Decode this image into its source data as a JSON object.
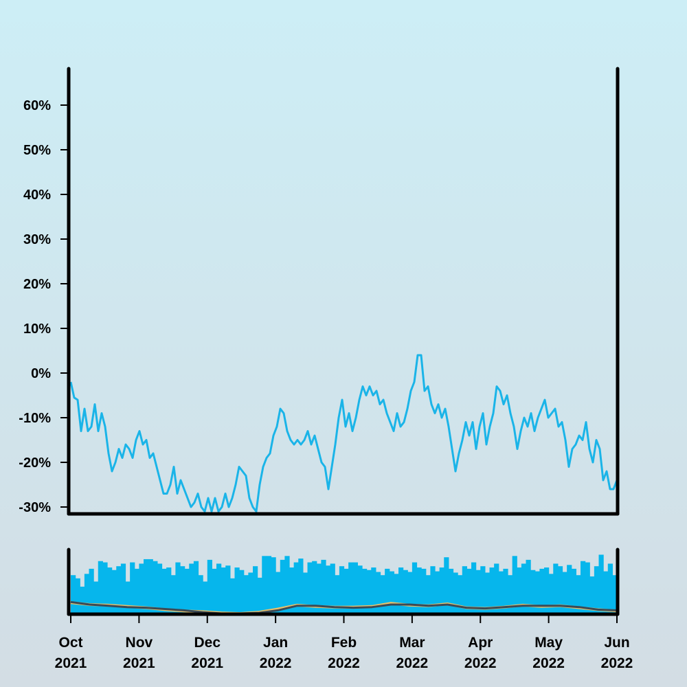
{
  "chart_data": [
    {
      "type": "line",
      "ylim": [
        -32,
        68
      ],
      "xlim": [
        "2021-10-01",
        "2022-06-01"
      ],
      "yticks": [
        "60%",
        "50%",
        "40%",
        "30%",
        "20%",
        "10%",
        "0%",
        "-10%",
        "-20%",
        "-30%"
      ],
      "ytick_values": [
        60,
        50,
        40,
        30,
        20,
        10,
        0,
        -10,
        -20,
        -30
      ],
      "color": "#1ab4e8",
      "values": [
        -2,
        -5.5,
        -6,
        -13,
        -8,
        -13,
        -12,
        -7,
        -13,
        -9,
        -12,
        -18,
        -22,
        -20,
        -17,
        -19,
        -16,
        -17,
        -19,
        -15,
        -13,
        -16,
        -15,
        -19,
        -18,
        -21,
        -24,
        -27,
        -27,
        -25,
        -21,
        -27,
        -24,
        -26,
        -28,
        -30,
        -29,
        -27,
        -30,
        -31,
        -28,
        -31,
        -28,
        -31,
        -30,
        -27,
        -30,
        -28,
        -25,
        -21,
        -22,
        -23,
        -28,
        -30,
        -31,
        -25,
        -21,
        -19,
        -18,
        -14,
        -12,
        -8,
        -9,
        -13,
        -15,
        -16,
        -15,
        -16,
        -15,
        -13,
        -16,
        -14,
        -17,
        -20,
        -21,
        -26,
        -21,
        -16,
        -10,
        -6,
        -12,
        -9,
        -13,
        -10,
        -6,
        -3,
        -5,
        -3,
        -5,
        -4,
        -7,
        -6,
        -9,
        -11,
        -13,
        -9,
        -12,
        -11,
        -8,
        -4,
        -2,
        4,
        4,
        -4,
        -3,
        -7,
        -9,
        -7,
        -10,
        -8,
        -12,
        -17,
        -22,
        -18,
        -15,
        -11,
        -14,
        -11,
        -17,
        -12,
        -9,
        -16,
        -12,
        -9,
        -3,
        -4,
        -7,
        -5,
        -9,
        -12,
        -17,
        -13,
        -10,
        -12,
        -9,
        -13,
        -10,
        -8,
        -6,
        -10,
        -9,
        -8,
        -12,
        -11,
        -15,
        -21,
        -17,
        -16,
        -14,
        -15,
        -11,
        -17,
        -20,
        -15,
        -17,
        -24,
        -22,
        -26,
        -26,
        -24
      ]
    },
    {
      "type": "bar",
      "xlim": [
        "2021-10-01",
        "2022-06-01"
      ],
      "color": "#06b6ec",
      "values": [
        60,
        55,
        42,
        62,
        70,
        50,
        82,
        80,
        72,
        68,
        74,
        78,
        50,
        80,
        70,
        78,
        85,
        85,
        82,
        78,
        70,
        72,
        60,
        80,
        74,
        70,
        78,
        82,
        60,
        50,
        84,
        70,
        78,
        72,
        75,
        55,
        72,
        68,
        60,
        64,
        74,
        56,
        90,
        90,
        88,
        65,
        84,
        90,
        72,
        80,
        86,
        64,
        80,
        82,
        78,
        84,
        75,
        78,
        60,
        74,
        70,
        80,
        80,
        75,
        70,
        68,
        72,
        65,
        60,
        70,
        66,
        62,
        72,
        68,
        65,
        80,
        72,
        70,
        60,
        74,
        66,
        72,
        88,
        70,
        64,
        60,
        74,
        70,
        80,
        68,
        74,
        64,
        72,
        78,
        66,
        70,
        60,
        90,
        72,
        78,
        84,
        68,
        66,
        70,
        72,
        62,
        78,
        74,
        65,
        76,
        70,
        60,
        82,
        80,
        58,
        74,
        92,
        66,
        78,
        60
      ],
      "moving_averages": [
        {
          "color": "#e8c06a",
          "values": [
            17,
            14,
            13,
            11,
            9,
            6,
            4,
            3,
            1,
            0,
            2,
            7,
            13,
            11,
            10,
            10,
            11,
            16,
            13,
            12,
            15,
            9,
            8,
            10,
            13,
            11,
            12,
            9,
            6,
            4
          ]
        },
        {
          "color": "#3b4a56",
          "values": [
            18,
            14,
            12,
            10,
            9,
            7,
            5,
            2,
            0,
            0,
            1,
            5,
            12,
            12,
            10,
            9,
            10,
            14,
            14,
            12,
            14,
            9,
            8,
            10,
            12,
            12,
            12,
            10,
            6,
            5
          ]
        }
      ]
    }
  ],
  "xticks": [
    {
      "month": "Oct",
      "year": "2021"
    },
    {
      "month": "Nov",
      "year": "2021"
    },
    {
      "month": "Dec",
      "year": "2021"
    },
    {
      "month": "Jan",
      "year": "2022"
    },
    {
      "month": "Feb",
      "year": "2022"
    },
    {
      "month": "Mar",
      "year": "2022"
    },
    {
      "month": "Apr",
      "year": "2022"
    },
    {
      "month": "May",
      "year": "2022"
    },
    {
      "month": "Jun",
      "year": "2022"
    }
  ]
}
